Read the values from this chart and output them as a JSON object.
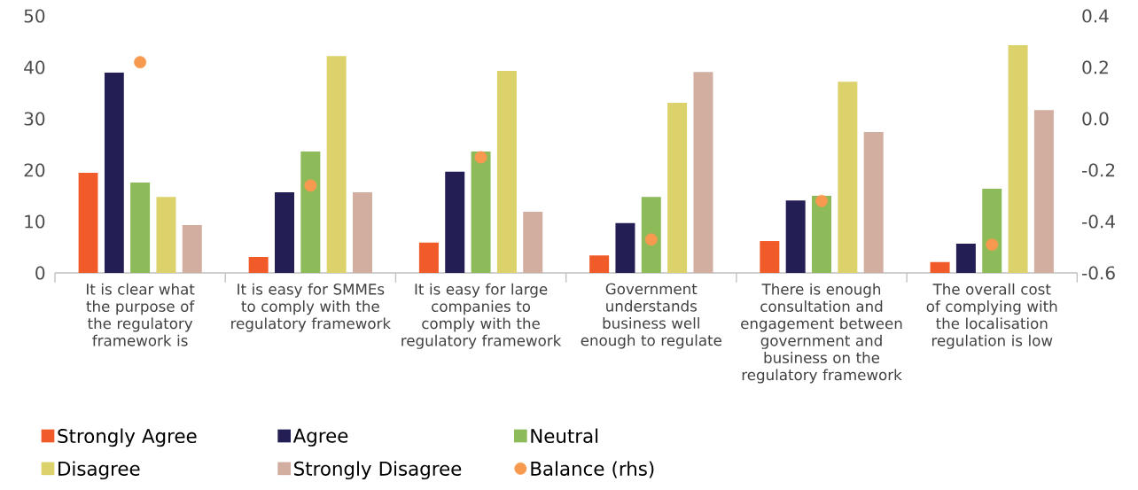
{
  "chart_data": {
    "type": "bar",
    "categories": [
      "It is clear what the purpose of the regulatory framework is",
      "It is easy for SMMEs to comply with the regulatory framework",
      "It is easy for large companies to comply with the regulatory framework",
      "Government understands business well enough to regulate",
      "There is enough consultation and engagement between government and business on the regulatory framework",
      "The overall cost of complying with the localisation regulation is low"
    ],
    "series": [
      {
        "name": "Strongly Agree",
        "color": "#f15a29",
        "values": [
          19.5,
          3.1,
          5.9,
          3.4,
          6.2,
          2.1
        ]
      },
      {
        "name": "Agree",
        "color": "#231f54",
        "values": [
          39,
          15.7,
          19.7,
          9.7,
          14.1,
          5.7
        ]
      },
      {
        "name": "Neutral",
        "color": "#8dbb5a",
        "values": [
          17.6,
          23.6,
          23.6,
          14.8,
          15.0,
          16.4
        ]
      },
      {
        "name": "Disagree",
        "color": "#dcd26b",
        "values": [
          14.8,
          42.2,
          39.3,
          33.1,
          37.2,
          44.3
        ]
      },
      {
        "name": "Strongly Disagree",
        "color": "#d1aea0",
        "values": [
          9.3,
          15.7,
          11.9,
          39.1,
          27.4,
          31.7
        ]
      },
      {
        "name": "Balance (rhs)",
        "color": "#f79a4f",
        "type": "scatter",
        "axis": "y2",
        "values": [
          0.22,
          -0.26,
          -0.15,
          -0.47,
          -0.32,
          -0.49
        ]
      }
    ],
    "ylim": [
      0,
      50
    ],
    "yticks": [
      0,
      10,
      20,
      30,
      40,
      50
    ],
    "y2lim": [
      -0.6,
      0.4
    ],
    "y2ticks": [
      -0.6,
      -0.4,
      -0.2,
      {
        "value": 0,
        "label": "0.0"
      },
      0.2,
      0.4
    ],
    "legend": "bottom"
  }
}
